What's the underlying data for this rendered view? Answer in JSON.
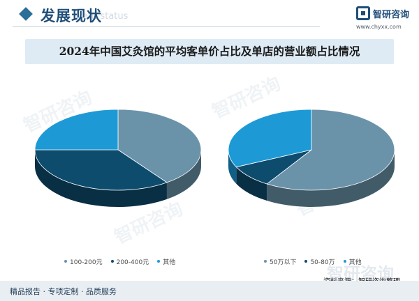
{
  "header": {
    "section_title": "发展现状",
    "section_subtitle": "ent status",
    "brand_name": "智研咨询",
    "brand_url": "www.chyxx.com"
  },
  "watermark_text": "智研咨询",
  "chart_data": [
    {
      "type": "pie",
      "title": "2024年中国艾灸馆的平均客单价占比及单店的营业额占比情况",
      "categories": [
        "100-200元",
        "200-400元",
        "其他"
      ],
      "values": [
        40,
        35,
        25
      ],
      "colors": [
        "#6a93aa",
        "#0e4c6e",
        "#1d9ad6"
      ],
      "legend_position": "bottom"
    },
    {
      "type": "pie",
      "categories": [
        "50万以下",
        "50-80万",
        "其他"
      ],
      "values": [
        59,
        9,
        32
      ],
      "colors": [
        "#6a93aa",
        "#0e4c6e",
        "#1d9ad6"
      ],
      "legend_position": "bottom"
    }
  ],
  "source": "资料来源：智研咨询整理",
  "footer": {
    "tagline": "精品报告 · 专项定制 · 品质服务",
    "brand": "智研咨询"
  }
}
